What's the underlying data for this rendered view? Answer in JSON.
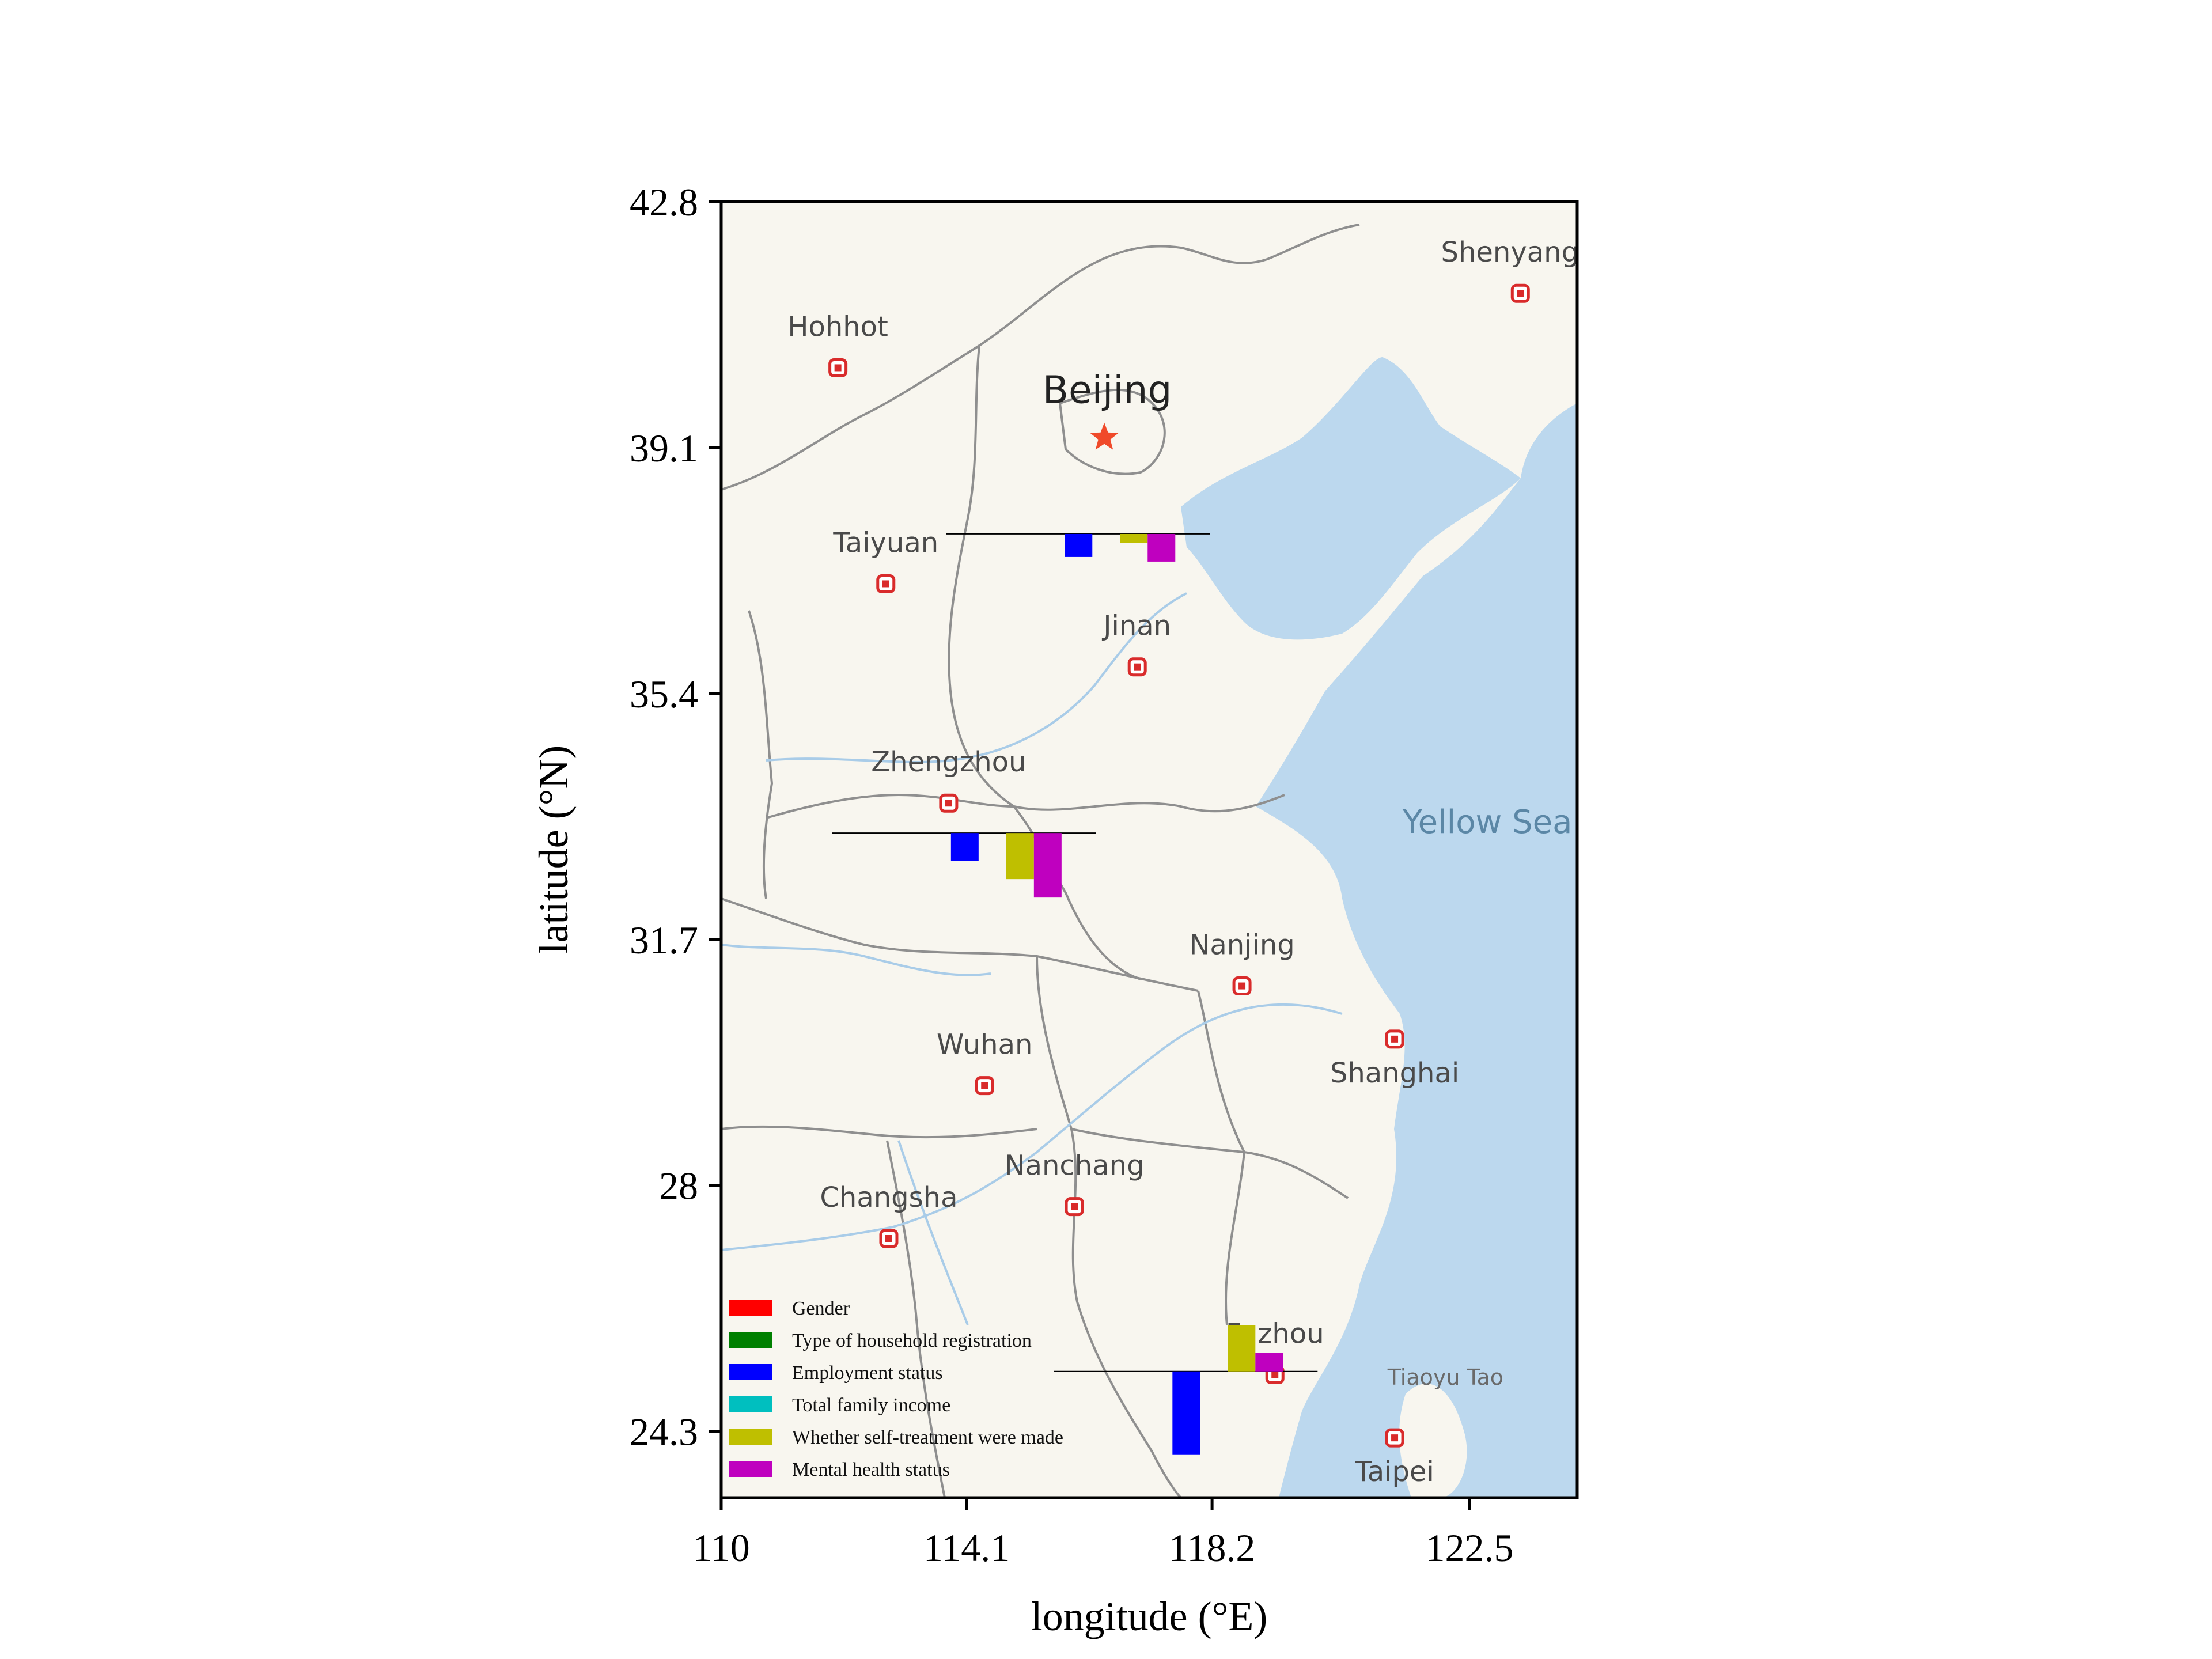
{
  "xaxis": {
    "label": "longitude (°E)",
    "ticks": [
      "110",
      "114.1",
      "118.2",
      "122.5"
    ],
    "tick_values": [
      110,
      114.1,
      118.2,
      122.5
    ],
    "range": [
      110,
      124.3
    ]
  },
  "yaxis": {
    "label": "latitude (°N)",
    "ticks": [
      "42.8",
      "39.1",
      "35.4",
      "31.7",
      "28",
      "24.3"
    ],
    "tick_values": [
      42.8,
      39.1,
      35.4,
      31.7,
      28,
      24.3
    ],
    "range": [
      23.3,
      42.8
    ]
  },
  "cities": [
    {
      "name": "Shenyang",
      "lon": 123.35,
      "lat": 41.42,
      "label_dx": -18,
      "label_dy": -55,
      "anchor": "middle",
      "capital": false
    },
    {
      "name": "Hohhot",
      "lon": 111.95,
      "lat": 40.3,
      "label_dx": 0,
      "label_dy": -55,
      "anchor": "middle",
      "capital": false
    },
    {
      "name": "Beijing",
      "lon": 116.4,
      "lat": 39.25,
      "label_dx": 5,
      "label_dy": -60,
      "anchor": "middle",
      "capital": true
    },
    {
      "name": "Taiyuan",
      "lon": 112.75,
      "lat": 37.05,
      "label_dx": 0,
      "label_dy": -55,
      "anchor": "middle",
      "capital": false
    },
    {
      "name": "Jinan",
      "lon": 116.95,
      "lat": 35.8,
      "label_dx": 0,
      "label_dy": -55,
      "anchor": "middle",
      "capital": false
    },
    {
      "name": "Zhengzhou",
      "lon": 113.8,
      "lat": 33.75,
      "label_dx": 0,
      "label_dy": -55,
      "anchor": "middle",
      "capital": false
    },
    {
      "name": "Nanjing",
      "lon": 118.7,
      "lat": 31.0,
      "label_dx": 0,
      "label_dy": -55,
      "anchor": "middle",
      "capital": false
    },
    {
      "name": "Shanghai",
      "lon": 121.25,
      "lat": 30.2,
      "label_dx": 0,
      "label_dy": 75,
      "anchor": "middle",
      "capital": false
    },
    {
      "name": "Wuhan",
      "lon": 114.4,
      "lat": 29.5,
      "label_dx": 0,
      "label_dy": -55,
      "anchor": "middle",
      "capital": false
    },
    {
      "name": "Nanchang",
      "lon": 115.9,
      "lat": 27.68,
      "label_dx": 0,
      "label_dy": -55,
      "anchor": "middle",
      "capital": false
    },
    {
      "name": "Changsha",
      "lon": 112.8,
      "lat": 27.2,
      "label_dx": 0,
      "label_dy": -55,
      "anchor": "middle",
      "capital": false
    },
    {
      "name": "Fuzhou",
      "lon": 119.25,
      "lat": 25.15,
      "label_dx": 0,
      "label_dy": -55,
      "anchor": "middle",
      "capital": false
    },
    {
      "name": "Taipei",
      "lon": 121.25,
      "lat": 24.2,
      "label_dx": 0,
      "label_dy": 75,
      "anchor": "middle",
      "capital": false
    }
  ],
  "sea_labels": [
    {
      "name": "Yellow Sea",
      "lon": 122.8,
      "lat": 33.3
    }
  ],
  "small_labels": [
    {
      "name": "Tiaoyu Tao",
      "lon": 122.1,
      "lat": 25.0
    }
  ],
  "legend": {
    "position": "lower-left",
    "entries": [
      {
        "label": "Gender",
        "color": "#ff0000"
      },
      {
        "label": "Type of household registration",
        "color": "#008000"
      },
      {
        "label": "Employment status",
        "color": "#0000ff"
      },
      {
        "label": "Total family income",
        "color": "#00bfbf"
      },
      {
        "label": "Whether self-treatment were made",
        "color": "#bfbf00"
      },
      {
        "label": "Mental health status",
        "color": "#bf00bf"
      }
    ]
  },
  "chart_data": {
    "type": "bar",
    "categories": [
      "Gender",
      "Type of household registration",
      "Employment status",
      "Total family income",
      "Whether self-treatment were made",
      "Mental health status"
    ],
    "series": [
      {
        "anchor_lon": 116.2,
        "anchor_lat": 37.8,
        "values": [
          0,
          0,
          -0.5,
          0,
          -0.2,
          -0.6
        ]
      },
      {
        "anchor_lon": 114.3,
        "anchor_lat": 33.3,
        "values": [
          0,
          0,
          -0.6,
          0,
          -1.0,
          -1.4
        ]
      },
      {
        "anchor_lon": 118.0,
        "anchor_lat": 25.2,
        "values": [
          0,
          0,
          -1.8,
          0,
          1.0,
          0.4
        ]
      }
    ]
  }
}
